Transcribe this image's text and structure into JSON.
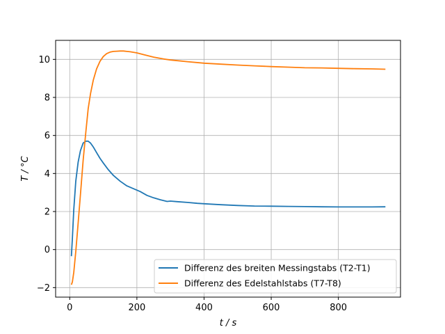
{
  "chart_data": {
    "type": "line",
    "title": "",
    "xlabel": "t / s",
    "ylabel": "T / °C",
    "xlim": [
      -42,
      985
    ],
    "ylim": [
      -2.5,
      11.0
    ],
    "xticks": [
      0,
      200,
      400,
      600,
      800
    ],
    "yticks": [
      -2,
      0,
      2,
      4,
      6,
      8,
      10
    ],
    "grid": true,
    "legend_position": "lower-right",
    "series": [
      {
        "name": "Differenz des breiten Messingstabs (T2-T1)",
        "color": "#1f77b4",
        "x": [
          5,
          8,
          12,
          18,
          25,
          32,
          40,
          48,
          55,
          62,
          70,
          80,
          90,
          100,
          115,
          130,
          150,
          170,
          190,
          210,
          230,
          250,
          270,
          290,
          300,
          320,
          350,
          380,
          400,
          450,
          500,
          550,
          600,
          650,
          700,
          750,
          800,
          850,
          900,
          940
        ],
        "y": [
          -0.35,
          0.6,
          2.1,
          3.6,
          4.6,
          5.2,
          5.6,
          5.7,
          5.7,
          5.6,
          5.4,
          5.1,
          4.8,
          4.55,
          4.2,
          3.9,
          3.6,
          3.35,
          3.2,
          3.05,
          2.85,
          2.72,
          2.62,
          2.53,
          2.55,
          2.52,
          2.48,
          2.43,
          2.41,
          2.36,
          2.32,
          2.29,
          2.28,
          2.27,
          2.26,
          2.25,
          2.24,
          2.24,
          2.24,
          2.25
        ]
      },
      {
        "name": "Differenz des Edelstahlstabs (T7-T8)",
        "color": "#ff7f0e",
        "x": [
          5,
          8,
          12,
          18,
          25,
          32,
          40,
          48,
          55,
          62,
          70,
          80,
          90,
          100,
          110,
          120,
          130,
          140,
          150,
          160,
          170,
          180,
          200,
          220,
          250,
          280,
          300,
          350,
          400,
          450,
          500,
          550,
          600,
          650,
          700,
          750,
          800,
          850,
          900,
          940
        ],
        "y": [
          -1.85,
          -1.7,
          -1.2,
          -0.1,
          1.4,
          2.9,
          4.7,
          6.2,
          7.4,
          8.2,
          8.9,
          9.5,
          9.9,
          10.15,
          10.3,
          10.38,
          10.42,
          10.43,
          10.44,
          10.44,
          10.42,
          10.4,
          10.34,
          10.25,
          10.12,
          10.02,
          9.97,
          9.88,
          9.8,
          9.75,
          9.7,
          9.66,
          9.62,
          9.59,
          9.56,
          9.55,
          9.53,
          9.51,
          9.5,
          9.48
        ]
      }
    ]
  }
}
